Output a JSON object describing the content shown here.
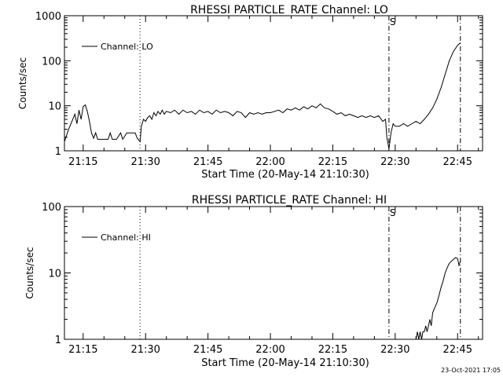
{
  "footer": {
    "timestamp": "23-Oct-2021 17:05"
  },
  "chart_data": [
    {
      "type": "line",
      "title": "RHESSI PARTICLE_RATE Channel: LO",
      "xlabel": "Start Time (20-May-14 21:10:30)",
      "ylabel": "Counts/sec",
      "yscale": "log",
      "ylim": [
        1,
        1000
      ],
      "xlim": [
        "21:10:30",
        "22:51:00"
      ],
      "x_ticks": [
        "21:15",
        "21:30",
        "21:45",
        "22:00",
        "22:15",
        "22:30",
        "22:45"
      ],
      "y_ticks": [
        "1",
        "10",
        "100",
        "1000"
      ],
      "legend": "Channel: LO",
      "legend_position": "top-left",
      "vlines": [
        {
          "time": "21:28:40",
          "style": "dotted"
        },
        {
          "time": "22:28:30",
          "style": "dashdot",
          "label": "S"
        },
        {
          "time": "22:45:40",
          "style": "dashdot"
        }
      ],
      "series": [
        {
          "name": "Channel: LO",
          "points": [
            [
              "21:10:30",
              1.6
            ],
            [
              "21:11:30",
              3.0
            ],
            [
              "21:12:30",
              5.0
            ],
            [
              "21:13:00",
              6.5
            ],
            [
              "21:13:30",
              4.0
            ],
            [
              "21:14:00",
              8.0
            ],
            [
              "21:14:30",
              5.0
            ],
            [
              "21:15:00",
              9.5
            ],
            [
              "21:15:30",
              10.5
            ],
            [
              "21:16:00",
              7.5
            ],
            [
              "21:16:30",
              4.5
            ],
            [
              "21:17:00",
              2.5
            ],
            [
              "21:17:30",
              1.9
            ],
            [
              "21:18:00",
              2.5
            ],
            [
              "21:18:30",
              1.8
            ],
            [
              "21:20:00",
              1.8
            ],
            [
              "21:21:00",
              1.8
            ],
            [
              "21:21:30",
              2.5
            ],
            [
              "21:22:00",
              1.8
            ],
            [
              "21:23:00",
              1.8
            ],
            [
              "21:24:00",
              2.5
            ],
            [
              "21:24:30",
              1.8
            ],
            [
              "21:25:30",
              2.5
            ],
            [
              "21:26:30",
              2.5
            ],
            [
              "21:27:30",
              2.5
            ],
            [
              "21:28:00",
              1.9
            ],
            [
              "21:28:40",
              1.6
            ],
            [
              "21:29:00",
              3.5
            ],
            [
              "21:29:30",
              5.0
            ],
            [
              "21:30:00",
              4.5
            ],
            [
              "21:30:30",
              5.5
            ],
            [
              "21:31:00",
              6.0
            ],
            [
              "21:31:30",
              5.0
            ],
            [
              "21:32:00",
              7.0
            ],
            [
              "21:32:30",
              6.0
            ],
            [
              "21:33:00",
              7.5
            ],
            [
              "21:33:30",
              6.5
            ],
            [
              "21:34:00",
              8.0
            ],
            [
              "21:34:30",
              6.5
            ],
            [
              "21:35:00",
              7.5
            ],
            [
              "21:36:00",
              7.0
            ],
            [
              "21:37:00",
              8.0
            ],
            [
              "21:38:00",
              6.5
            ],
            [
              "21:39:00",
              8.0
            ],
            [
              "21:40:00",
              7.0
            ],
            [
              "21:41:00",
              7.5
            ],
            [
              "21:42:00",
              6.5
            ],
            [
              "21:43:00",
              8.0
            ],
            [
              "21:44:00",
              7.0
            ],
            [
              "21:45:00",
              7.5
            ],
            [
              "21:46:00",
              6.5
            ],
            [
              "21:47:00",
              8.0
            ],
            [
              "21:48:00",
              7.0
            ],
            [
              "21:49:00",
              7.5
            ],
            [
              "21:50:00",
              7.0
            ],
            [
              "21:51:00",
              6.0
            ],
            [
              "21:52:00",
              7.5
            ],
            [
              "21:53:00",
              7.0
            ],
            [
              "21:54:00",
              5.5
            ],
            [
              "21:55:00",
              7.0
            ],
            [
              "21:56:00",
              6.5
            ],
            [
              "21:57:00",
              7.0
            ],
            [
              "21:58:00",
              6.5
            ],
            [
              "21:59:00",
              7.0
            ],
            [
              "22:00:00",
              7.0
            ],
            [
              "22:01:00",
              7.5
            ],
            [
              "22:02:00",
              8.0
            ],
            [
              "22:03:00",
              7.0
            ],
            [
              "22:04:00",
              8.5
            ],
            [
              "22:05:00",
              8.0
            ],
            [
              "22:06:00",
              9.0
            ],
            [
              "22:07:00",
              8.0
            ],
            [
              "22:08:00",
              9.5
            ],
            [
              "22:09:00",
              8.5
            ],
            [
              "22:10:00",
              10.0
            ],
            [
              "22:11:00",
              9.0
            ],
            [
              "22:12:00",
              11.0
            ],
            [
              "22:13:00",
              9.0
            ],
            [
              "22:14:00",
              8.5
            ],
            [
              "22:15:00",
              7.5
            ],
            [
              "22:16:00",
              6.5
            ],
            [
              "22:17:00",
              7.0
            ],
            [
              "22:18:00",
              6.0
            ],
            [
              "22:19:00",
              6.5
            ],
            [
              "22:20:00",
              6.0
            ],
            [
              "22:21:00",
              5.5
            ],
            [
              "22:22:00",
              6.0
            ],
            [
              "22:23:00",
              5.5
            ],
            [
              "22:24:00",
              6.0
            ],
            [
              "22:25:00",
              5.5
            ],
            [
              "22:26:00",
              6.0
            ],
            [
              "22:27:00",
              4.5
            ],
            [
              "22:27:40",
              5.0
            ],
            [
              "22:28:00",
              2.0
            ],
            [
              "22:28:30",
              1.1
            ],
            [
              "22:29:00",
              2.5
            ],
            [
              "22:29:30",
              4.0
            ],
            [
              "22:30:00",
              3.5
            ],
            [
              "22:31:00",
              3.5
            ],
            [
              "22:32:00",
              4.0
            ],
            [
              "22:33:00",
              3.5
            ],
            [
              "22:34:00",
              4.0
            ],
            [
              "22:35:00",
              4.5
            ],
            [
              "22:36:00",
              4.0
            ],
            [
              "22:37:00",
              5.0
            ],
            [
              "22:38:00",
              6.5
            ],
            [
              "22:39:00",
              9.0
            ],
            [
              "22:40:00",
              14.0
            ],
            [
              "22:41:00",
              25.0
            ],
            [
              "22:42:00",
              50.0
            ],
            [
              "22:43:00",
              100.0
            ],
            [
              "22:44:00",
              160.0
            ],
            [
              "22:45:00",
              220.0
            ],
            [
              "22:45:40",
              250.0
            ]
          ]
        }
      ]
    },
    {
      "type": "line",
      "title": "RHESSI PARTICLE_RATE Channel: HI",
      "xlabel": "Start Time (20-May-14 21:10:30)",
      "ylabel": "Counts/sec",
      "yscale": "log",
      "ylim": [
        1,
        100
      ],
      "xlim": [
        "21:10:30",
        "22:51:00"
      ],
      "x_ticks": [
        "21:15",
        "21:30",
        "21:45",
        "22:00",
        "22:15",
        "22:30",
        "22:45"
      ],
      "y_ticks": [
        "1",
        "10",
        "100"
      ],
      "legend": "Channel: HI",
      "legend_position": "top-left",
      "vlines": [
        {
          "time": "21:28:40",
          "style": "dotted"
        },
        {
          "time": "22:28:30",
          "style": "dashdot",
          "label": "S"
        },
        {
          "time": "22:45:40",
          "style": "dashdot"
        }
      ],
      "series": [
        {
          "name": "Channel: HI",
          "points": [
            [
              "22:35:00",
              1.0
            ],
            [
              "22:35:20",
              1.3
            ],
            [
              "22:35:40",
              1.0
            ],
            [
              "22:36:00",
              1.3
            ],
            [
              "22:36:20",
              1.0
            ],
            [
              "22:36:40",
              1.3
            ],
            [
              "22:37:00",
              1.3
            ],
            [
              "22:37:20",
              1.6
            ],
            [
              "22:37:40",
              1.3
            ],
            [
              "22:38:00",
              1.6
            ],
            [
              "22:38:20",
              2.0
            ],
            [
              "22:38:40",
              1.6
            ],
            [
              "22:39:00",
              2.5
            ],
            [
              "22:39:30",
              3.0
            ],
            [
              "22:40:00",
              3.5
            ],
            [
              "22:40:30",
              4.5
            ],
            [
              "22:41:00",
              6.0
            ],
            [
              "22:41:30",
              7.5
            ],
            [
              "22:42:00",
              10.0
            ],
            [
              "22:42:30",
              12.0
            ],
            [
              "22:43:00",
              14.0
            ],
            [
              "22:43:30",
              15.0
            ],
            [
              "22:44:00",
              16.0
            ],
            [
              "22:44:30",
              17.0
            ],
            [
              "22:45:00",
              16.5
            ],
            [
              "22:45:20",
              13.0
            ],
            [
              "22:45:40",
              15.0
            ]
          ]
        }
      ]
    }
  ]
}
